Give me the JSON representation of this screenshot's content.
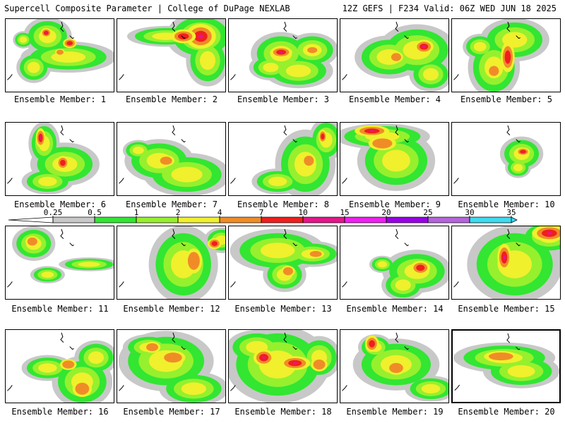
{
  "header": {
    "left": "Supercell Composite Parameter | College of DuPage NEXLAB",
    "right": "12Z GEFS | F234 Valid: 06Z WED JUN 18 2025"
  },
  "legend": {
    "ticks": [
      "0.25",
      "0.5",
      "1",
      "2",
      "4",
      "7",
      "10",
      "15",
      "20",
      "25",
      "30",
      "35"
    ],
    "colors": [
      "#c8c8c8",
      "#32e632",
      "#96f02d",
      "#f0f02d",
      "#f08c28",
      "#f01e1e",
      "#e6148c",
      "#f01ef0",
      "#9600e6",
      "#b464dc",
      "#3cdcf0"
    ]
  },
  "members": [
    {
      "label": "Ensemble Member: 1"
    },
    {
      "label": "Ensemble Member: 2"
    },
    {
      "label": "Ensemble Member: 3"
    },
    {
      "label": "Ensemble Member: 4"
    },
    {
      "label": "Ensemble Member: 5"
    },
    {
      "label": "Ensemble Member: 6"
    },
    {
      "label": "Ensemble Member: 7"
    },
    {
      "label": "Ensemble Member: 8"
    },
    {
      "label": "Ensemble Member: 9"
    },
    {
      "label": "Ensemble Member: 10"
    },
    {
      "label": "Ensemble Member: 11"
    },
    {
      "label": "Ensemble Member: 12"
    },
    {
      "label": "Ensemble Member: 13"
    },
    {
      "label": "Ensemble Member: 14"
    },
    {
      "label": "Ensemble Member: 15"
    },
    {
      "label": "Ensemble Member: 16"
    },
    {
      "label": "Ensemble Member: 17"
    },
    {
      "label": "Ensemble Member: 18"
    },
    {
      "label": "Ensemble Member: 19"
    },
    {
      "label": "Ensemble Member: 20"
    }
  ],
  "colors": {
    "gray": "#c8c8c8",
    "green": "#32e632",
    "lime": "#96f02d",
    "yellow": "#f0f02d",
    "orange": "#f08c28",
    "red": "#f01e1e",
    "magenta": "#e6148c"
  }
}
